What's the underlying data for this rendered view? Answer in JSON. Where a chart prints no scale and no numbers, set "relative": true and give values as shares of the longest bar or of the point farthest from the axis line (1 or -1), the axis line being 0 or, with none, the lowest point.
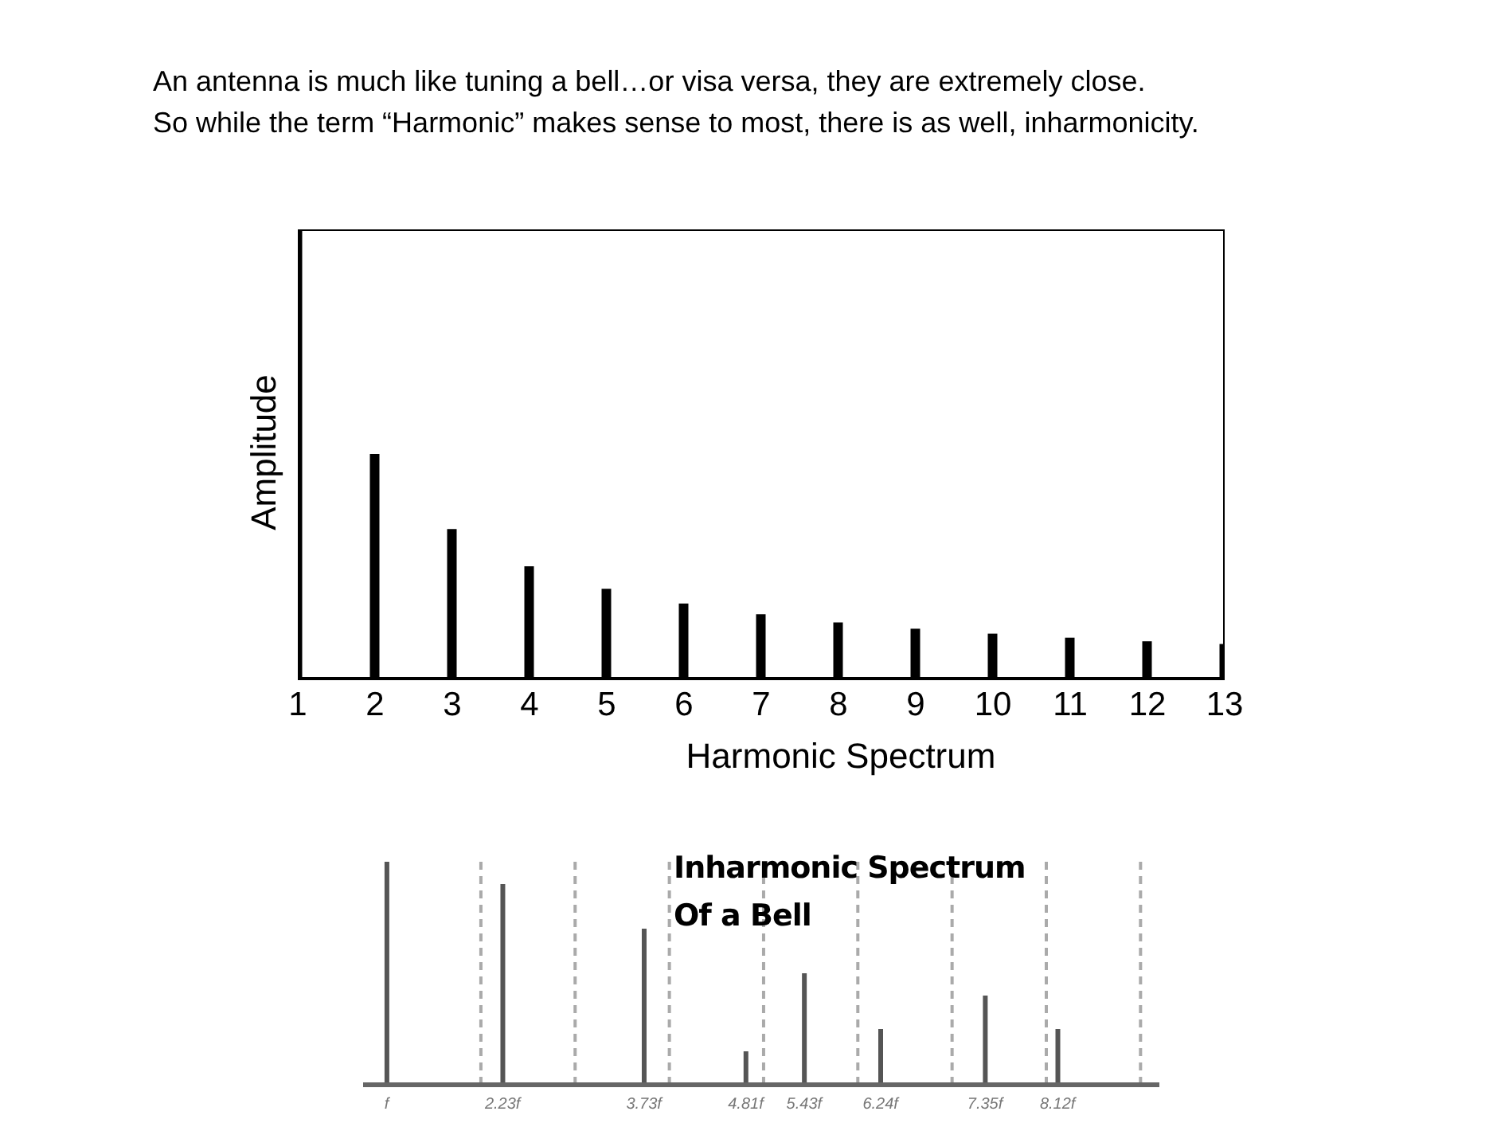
{
  "chart_data": [
    {
      "type": "bar",
      "relative": true,
      "annotations": [
        "An antenna is much like tuning a bell…or visa versa, they are extremely close.",
        "So while the term “Harmonic” makes sense to most, there is as well, inharmonicity."
      ],
      "xlabel": "Harmonic Spectrum",
      "ylabel": "Amplitude",
      "x": [
        1,
        2,
        3,
        4,
        5,
        6,
        7,
        8,
        9,
        10,
        11,
        12,
        13
      ],
      "values": [
        1,
        0.5,
        0.333,
        0.25,
        0.2,
        0.167,
        0.143,
        0.125,
        0.111,
        0.1,
        0.091,
        0.083,
        0.077
      ],
      "color": "#000000",
      "xlim": [
        1,
        13
      ],
      "xticks": [
        1,
        2,
        3,
        4,
        5,
        6,
        7,
        8,
        9,
        10,
        11,
        12,
        13
      ]
    },
    {
      "type": "bar",
      "relative": true,
      "title": "Inharmonic Spectrum\nOf a Bell",
      "x": [
        1,
        2.23,
        3.73,
        4.81,
        5.43,
        6.24,
        7.35,
        8.12
      ],
      "values": [
        1,
        0.9,
        0.7,
        0.15,
        0.5,
        0.25,
        0.4,
        0.25
      ],
      "color": "#555555",
      "xlim": [
        0.75,
        9.2
      ],
      "xticks": [
        {
          "value": 1,
          "label": "f"
        },
        {
          "value": 2.23,
          "label": "2.23f"
        },
        {
          "value": 3.73,
          "label": "3.73f"
        },
        {
          "value": 4.81,
          "label": "4.81f"
        },
        {
          "value": 5.43,
          "label": "5.43f"
        },
        {
          "value": 6.24,
          "label": "6.24f"
        },
        {
          "value": 7.35,
          "label": "7.35f"
        },
        {
          "value": 8.12,
          "label": "8.12f"
        }
      ],
      "ref_lines": [
        {
          "axis": "x",
          "value": 2,
          "color": "#aaaaaa",
          "line_style": "dashed"
        },
        {
          "axis": "x",
          "value": 3,
          "color": "#aaaaaa",
          "line_style": "dashed"
        },
        {
          "axis": "x",
          "value": 4,
          "color": "#aaaaaa",
          "line_style": "dashed"
        },
        {
          "axis": "x",
          "value": 5,
          "color": "#aaaaaa",
          "line_style": "dashed"
        },
        {
          "axis": "x",
          "value": 6,
          "color": "#aaaaaa",
          "line_style": "dashed"
        },
        {
          "axis": "x",
          "value": 7,
          "color": "#aaaaaa",
          "line_style": "dashed"
        },
        {
          "axis": "x",
          "value": 8,
          "color": "#aaaaaa",
          "line_style": "dashed"
        },
        {
          "axis": "x",
          "value": 9,
          "color": "#aaaaaa",
          "line_style": "dashed"
        }
      ]
    }
  ]
}
